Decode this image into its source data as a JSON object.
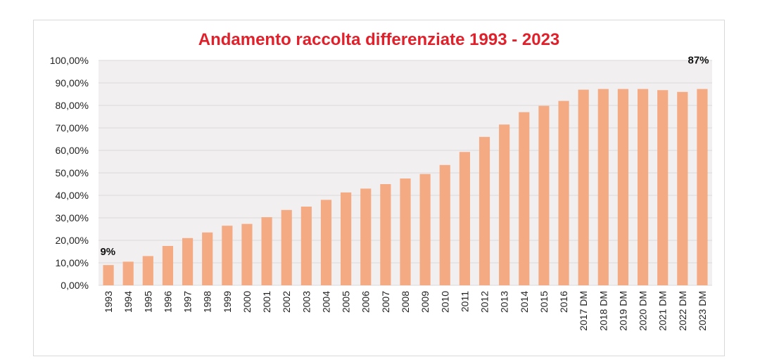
{
  "chart_data": {
    "type": "bar",
    "title": "Andamento raccolta differenziate 1993 - 2023",
    "xlabel": "",
    "ylabel": "",
    "ylim": [
      0,
      100
    ],
    "y_ticks": [
      "0,00%",
      "10,00%",
      "20,00%",
      "30,00%",
      "40,00%",
      "50,00%",
      "60,00%",
      "70,00%",
      "80,00%",
      "90,00%",
      "100,00%"
    ],
    "categories": [
      "1993",
      "1994",
      "1995",
      "1996",
      "1997",
      "1998",
      "1999",
      "2000",
      "2001",
      "2002",
      "2003",
      "2004",
      "2005",
      "2006",
      "2007",
      "2008",
      "2009",
      "2010",
      "2011",
      "2012",
      "2013",
      "2014",
      "2015",
      "2016",
      "2017 DM",
      "2018 DM",
      "2019 DM",
      "2020 DM",
      "2021 DM",
      "2022 DM",
      "2023 DM"
    ],
    "values": [
      9,
      10.5,
      13,
      17.5,
      21,
      23.5,
      26.5,
      27.3,
      30.3,
      33.5,
      35,
      38,
      41.3,
      43,
      45,
      47.5,
      49.5,
      53.5,
      59.3,
      66,
      71.5,
      77,
      79.8,
      82,
      87,
      87.3,
      87.3,
      87.3,
      86.8,
      86,
      87.3
    ],
    "data_labels": [
      {
        "category": "1993",
        "text": "9%"
      },
      {
        "category": "2023 DM",
        "text": "87%"
      }
    ],
    "grid": true,
    "legend": "none",
    "bar_color": "#f4ab84",
    "plot_background": "#f2eff0",
    "gridline_color": "#d9d9d9",
    "title_color": "#e0202a"
  }
}
